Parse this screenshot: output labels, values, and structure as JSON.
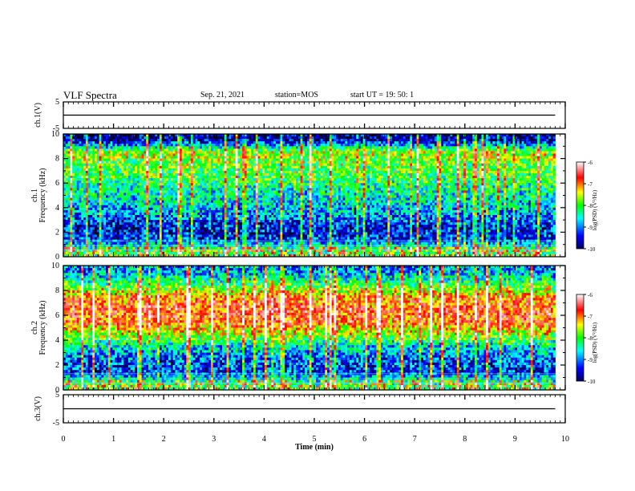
{
  "header": {
    "title": "VLF Spectra",
    "date": "Sep. 21, 2021",
    "station": "station=MOS",
    "start_ut": "start UT =  19: 50: 1"
  },
  "colors": {
    "colormap": [
      "#000080",
      "#0000ff",
      "#00ffff",
      "#00ff00",
      "#ffff00",
      "#ff0000",
      "#ffffff"
    ]
  },
  "chart_data": [
    {
      "type": "line",
      "panel": "ch1",
      "ylabel": "ch.1(V)",
      "ylim": [
        -5,
        5
      ],
      "ytick_labels": [
        "5",
        "-5"
      ],
      "x_unit": "min",
      "x": [
        0,
        9.8
      ],
      "values": [
        0,
        0
      ]
    },
    {
      "type": "heatmap",
      "panel": "ch1-spectrogram",
      "ylabel": "ch.1\nFrequency (kHz)",
      "ylim": [
        0,
        10
      ],
      "ytick_labels": [
        "0",
        "2",
        "4",
        "6",
        "8",
        "10"
      ],
      "xlim": [
        0,
        10
      ],
      "data_end_min": 9.8,
      "band_profile_kHz": [
        0.5,
        1.5,
        2.5,
        3.5,
        4.5,
        5.5,
        6.5,
        7.5,
        8.5,
        9.5
      ],
      "band_level_log": [
        -8.0,
        -9.2,
        -9.3,
        -8.8,
        -8.5,
        -8.3,
        -8.0,
        -7.8,
        -7.6,
        -9.5
      ],
      "colorbar": {
        "label": "log(PSD) (V²/Hz)",
        "range": [
          -10,
          -6
        ],
        "tick_labels": [
          "-6",
          "-7",
          "-8",
          "-9",
          "-10"
        ]
      }
    },
    {
      "type": "heatmap",
      "panel": "ch2-spectrogram",
      "ylabel": "ch.2\nFrequency (kHz)",
      "ylim": [
        0,
        10
      ],
      "ytick_labels": [
        "0",
        "2",
        "4",
        "6",
        "8",
        "10"
      ],
      "xlim": [
        0,
        10
      ],
      "data_end_min": 9.8,
      "band_profile_kHz": [
        0.5,
        1.5,
        2.5,
        3.5,
        4.5,
        5.5,
        6.5,
        7.5,
        8.5,
        9.5
      ],
      "band_level_log": [
        -8.0,
        -9.2,
        -9.0,
        -8.5,
        -7.5,
        -6.8,
        -6.7,
        -7.0,
        -8.0,
        -8.8
      ],
      "colorbar": {
        "label": "log(PSD) (V²/Hz)",
        "range": [
          -10,
          -6
        ],
        "tick_labels": [
          "-6",
          "-7",
          "-8",
          "-9",
          "-10"
        ]
      }
    },
    {
      "type": "line",
      "panel": "ch3",
      "ylabel": "ch.3(V)",
      "ylim": [
        -5,
        5
      ],
      "ytick_labels": [
        "5",
        "-5"
      ],
      "x_unit": "min",
      "x": [
        0,
        9.8
      ],
      "values": [
        0,
        0
      ]
    }
  ],
  "xaxis": {
    "label": "Time (min)",
    "range": [
      0,
      10
    ],
    "tick_labels": [
      "0",
      "1",
      "2",
      "3",
      "4",
      "5",
      "6",
      "7",
      "8",
      "9",
      "10"
    ]
  }
}
